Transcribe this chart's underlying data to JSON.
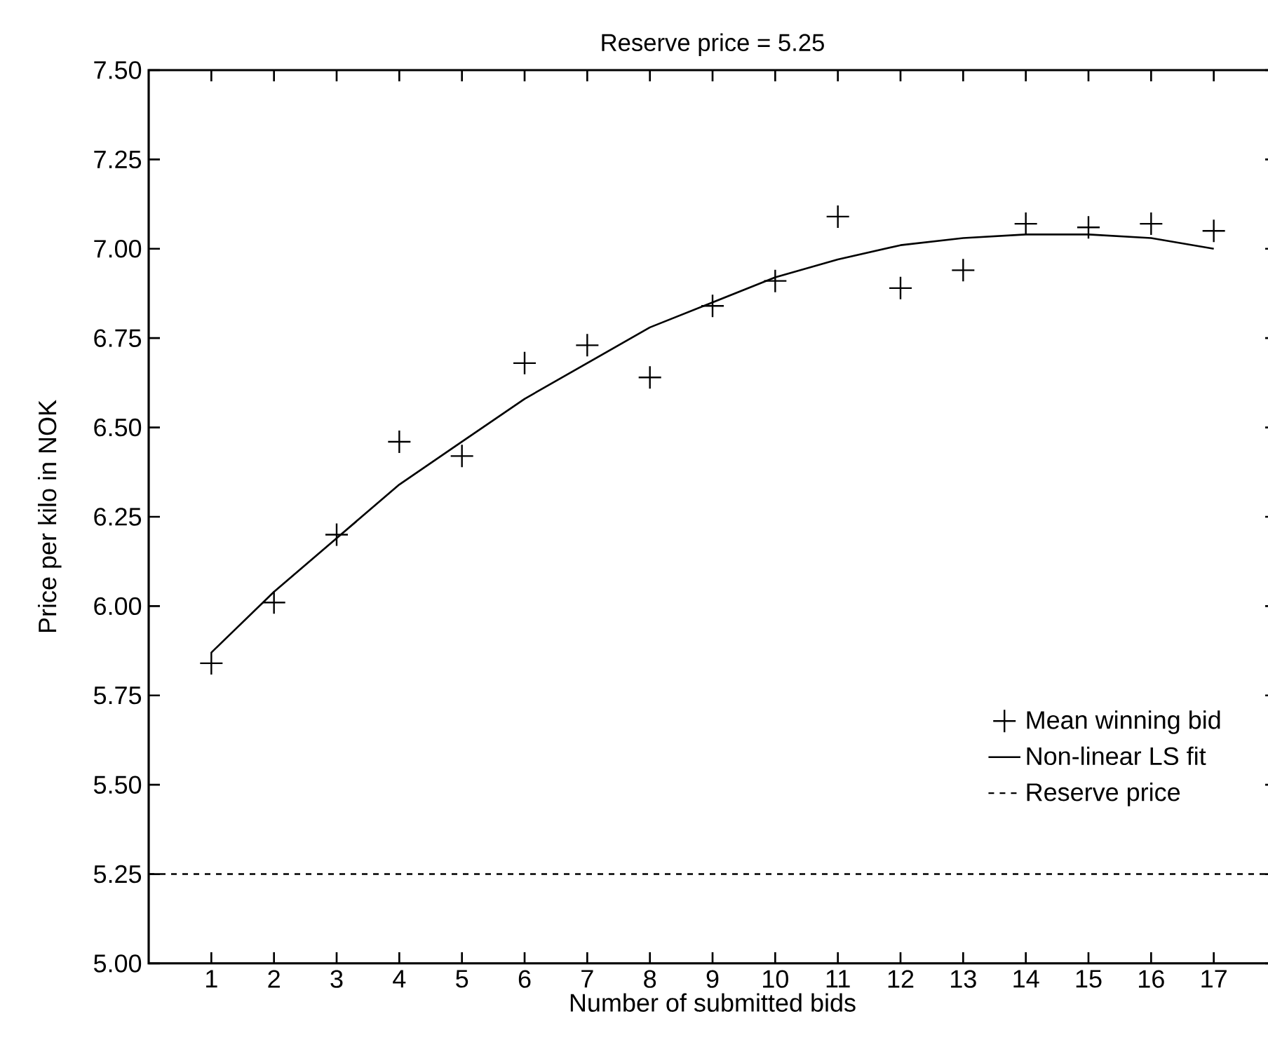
{
  "chart_data": {
    "type": "scatter",
    "title": "Reserve price = 5.25",
    "xlabel": "Number of submitted bids",
    "ylabel": "Price per kilo in NOK",
    "xlim": [
      0,
      18
    ],
    "ylim": [
      5,
      7.5
    ],
    "xticks": [
      1,
      2,
      3,
      4,
      5,
      6,
      7,
      8,
      9,
      10,
      11,
      12,
      13,
      14,
      15,
      16,
      17
    ],
    "yticks": [
      {
        "value": 5,
        "label": "5.00"
      },
      {
        "value": 5.25,
        "label": "5.25"
      },
      {
        "value": 5.5,
        "label": "5.50"
      },
      {
        "value": 5.75,
        "label": "5.75"
      },
      {
        "value": 6,
        "label": "6.00"
      },
      {
        "value": 6.25,
        "label": "6.25"
      },
      {
        "value": 6.5,
        "label": "6.50"
      },
      {
        "value": 6.75,
        "label": "6.75"
      },
      {
        "value": 7,
        "label": "7.00"
      },
      {
        "value": 7.25,
        "label": "7.25"
      },
      {
        "value": 7.5,
        "label": "7.50"
      }
    ],
    "x": [
      1,
      2,
      3,
      4,
      5,
      6,
      7,
      8,
      9,
      10,
      11,
      12,
      13,
      14,
      15,
      16,
      17
    ],
    "series": [
      {
        "name": "Mean winning bid",
        "marker": "cross",
        "color": "#000000",
        "values": [
          5.84,
          6.01,
          6.2,
          6.46,
          6.42,
          6.68,
          6.73,
          6.64,
          6.84,
          6.91,
          7.09,
          6.89,
          6.94,
          7.07,
          7.06,
          7.07,
          7.05
        ]
      },
      {
        "name": "Non-linear LS fit",
        "type": "line",
        "marker": "none",
        "line_style": "solid",
        "color": "#000000",
        "values": [
          5.87,
          6.04,
          6.19,
          6.34,
          6.46,
          6.58,
          6.68,
          6.78,
          6.85,
          6.92,
          6.97,
          7.01,
          7.03,
          7.04,
          7.04,
          7.03,
          7.0
        ]
      }
    ],
    "ref_lines": [
      {
        "axis": "y",
        "value": 5.25,
        "label": "Reserve price",
        "color": "#000000",
        "line_style": "dashed"
      }
    ],
    "legend": "bottom right",
    "grid": false
  }
}
